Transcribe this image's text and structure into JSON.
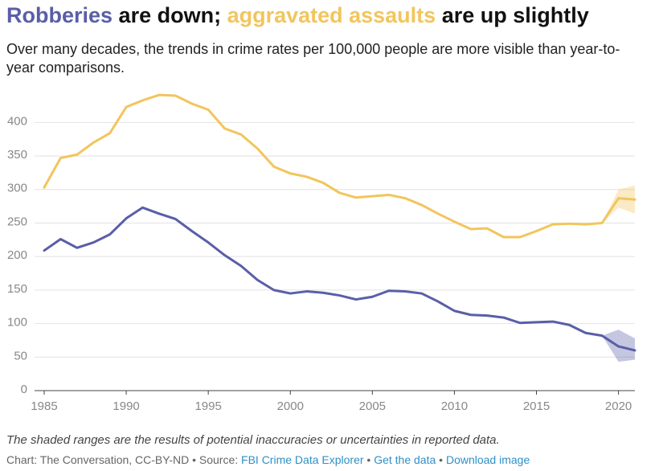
{
  "chart_data": {
    "type": "line",
    "title_parts": [
      {
        "text": "Robberies",
        "color": "#5a5ea8"
      },
      {
        "text": " are down; ",
        "color": "#111111"
      },
      {
        "text": "aggravated assaults",
        "color": "#f2c55c"
      },
      {
        "text": " are up slightly",
        "color": "#111111"
      }
    ],
    "subtitle": "Over many decades, the trends in crime rates per 100,000 people are more visible than year-to-year comparisons.",
    "note": "The shaded ranges are the results of potential inaccuracies or uncertainties in reported data.",
    "footer": [
      {
        "text": "Chart: The Conversation, CC-BY-ND • Source: "
      },
      {
        "text": "FBI Crime Data Explorer",
        "color": "#2f8fc6"
      },
      {
        "text": " • "
      },
      {
        "text": "Get the data",
        "color": "#2f8fc6"
      },
      {
        "text": " • "
      },
      {
        "text": "Download image",
        "color": "#2f8fc6"
      }
    ],
    "x": [
      1985,
      1986,
      1987,
      1988,
      1989,
      1990,
      1991,
      1992,
      1993,
      1994,
      1995,
      1996,
      1997,
      1998,
      1999,
      2000,
      2001,
      2002,
      2003,
      2004,
      2005,
      2006,
      2007,
      2008,
      2009,
      2010,
      2011,
      2012,
      2013,
      2014,
      2015,
      2016,
      2017,
      2018,
      2019,
      2020,
      2021
    ],
    "series": [
      {
        "color": "#f2c55c",
        "values": [
          303,
          347,
          352,
          370,
          384,
          423,
          433,
          441,
          440,
          428,
          419,
          391,
          382,
          361,
          334,
          324,
          319,
          310,
          295,
          288,
          290,
          292,
          287,
          277,
          264,
          252,
          241,
          242,
          229,
          229,
          238,
          248,
          249,
          248,
          250,
          287,
          285
        ],
        "band_lower": [
          null,
          null,
          null,
          null,
          null,
          null,
          null,
          null,
          null,
          null,
          null,
          null,
          null,
          null,
          null,
          null,
          null,
          null,
          null,
          null,
          null,
          null,
          null,
          null,
          null,
          null,
          null,
          null,
          null,
          null,
          null,
          null,
          null,
          null,
          250,
          273,
          264
        ],
        "band_upper": [
          null,
          null,
          null,
          null,
          null,
          null,
          null,
          null,
          null,
          null,
          null,
          null,
          null,
          null,
          null,
          null,
          null,
          null,
          null,
          null,
          null,
          null,
          null,
          null,
          null,
          null,
          null,
          null,
          null,
          null,
          null,
          null,
          null,
          null,
          250,
          300,
          306
        ]
      },
      {
        "color": "#5a5ea8",
        "values": [
          209,
          226,
          213,
          221,
          233,
          257,
          273,
          264,
          256,
          238,
          221,
          202,
          186,
          165,
          150,
          145,
          148,
          146,
          142,
          136,
          140,
          149,
          148,
          145,
          133,
          119,
          113,
          112,
          109,
          101,
          102,
          103,
          98,
          86,
          82,
          66,
          60
        ],
        "band_lower": [
          null,
          null,
          null,
          null,
          null,
          null,
          null,
          null,
          null,
          null,
          null,
          null,
          null,
          null,
          null,
          null,
          null,
          null,
          null,
          null,
          null,
          null,
          null,
          null,
          null,
          null,
          null,
          null,
          null,
          null,
          null,
          null,
          null,
          null,
          82,
          43,
          46
        ],
        "band_upper": [
          null,
          null,
          null,
          null,
          null,
          null,
          null,
          null,
          null,
          null,
          null,
          null,
          null,
          null,
          null,
          null,
          null,
          null,
          null,
          null,
          null,
          null,
          null,
          null,
          null,
          null,
          null,
          null,
          null,
          null,
          null,
          null,
          null,
          null,
          82,
          91,
          78
        ]
      }
    ],
    "xlim": [
      1985,
      2021
    ],
    "xticks": [
      1985,
      1990,
      1995,
      2000,
      2005,
      2010,
      2015,
      2020
    ],
    "ylim": [
      0,
      440
    ],
    "yticks": [
      0,
      50,
      100,
      150,
      200,
      250,
      300,
      350,
      400
    ],
    "grid": true
  }
}
